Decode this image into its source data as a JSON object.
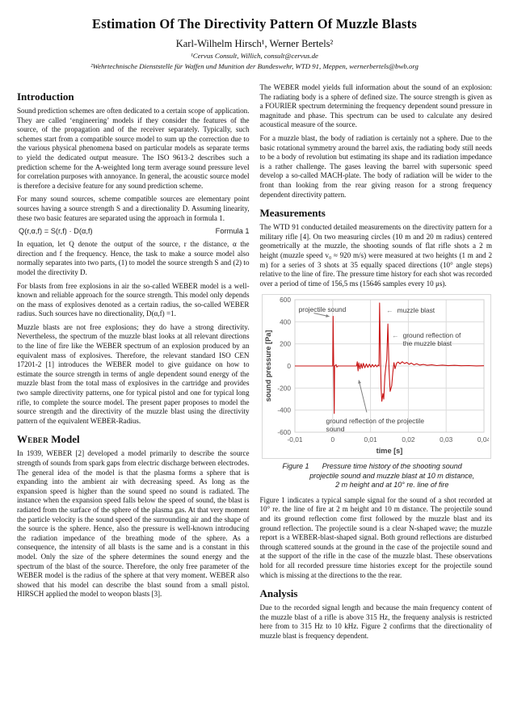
{
  "paper": {
    "title": "Estimation Of The Directivity Pattern Of Muzzle Blasts",
    "authors": "Karl-Wilhelm Hirsch¹, Werner Bertels²",
    "affiliation1": "¹Cervus Consult, Willich, consult@cervus.de",
    "affiliation2": "²Wehrtechnische Dienststelle für Waffen und Munition der Bundeswehr, WTD 91, Meppen, wernerbertels@bwb.org"
  },
  "left_column": {
    "h_intro": "Introduction",
    "p1": "Sound prediction schemes are often dedicated to a certain scope of application. They are called ‘engineering’ models if they consider the features of the source, of the propagation and of the receiver separately. Typically, such schemes start from a compatible source model to sum up the correction due to the various physical phenomena based on particular models as separate terms to yield the dedicated output measure. The ISO 9613-2 describes such a prediction scheme for the A-weighted long term average sound pressure level for correlation purposes with annoyance. In general, the acoustic source model is therefore a decisive feature for any sound prediction scheme.",
    "p2": "For many sound sources, scheme compatible sources are elementary point sources having a source strength S and a directionality D. Assuming linearity, these two basic features are separated using the approach in formula 1.",
    "formula_expr": "Q(r,α,f) = S(r,f) · D(α,f)",
    "formula_label": "Formula 1",
    "p3": "In equation, let Q denote the output of the source, r the distance, α the direction and f the frequency. Hence, the task to make a source model also normally separates into two parts, (1) to model the source strength S and (2) to model the directivity D.",
    "p4": "For blasts from free explosions in air the so-called WEBER model is a well-known and reliable approach for the source strength. This model only depends on the mass of explosives denoted as a certain radius, the so-called WEBER radius. Such sources have no directionality, D(α,f) =1.",
    "p5": "Muzzle blasts are not free explosions; they do have a strong directivity. Nevertheless, the spectrum of the muzzle blast looks at all relevant directions to the line of fire like the WEBER spectrum of an explosion produced by an equivalent mass of explosives. Therefore, the relevant standard ISO CEN 17201-2 [1] introduces the WEBER model to give guidance on how to estimate the source strength in terms of angle dependent sound energy of the muzzle blast from the total mass of explosives in the cartridge and provides two sample directivity patterns, one for typical pistol and one for typical long rifle, to complete the source model. The present paper proposes to model the source strength and the directivity of the muzzle blast using the directivity pattern of the equivalent WEBER-Radius.",
    "h_weber_sc": "Weber",
    "h_weber_rest": " Model",
    "p6": "In 1939, WEBER [2] developed a model primarily to describe the source strength of sounds from spark gaps from electric discharge between electrodes. The general idea of the model is that the plasma forms a sphere that is expanding into the ambient air with decreasing speed. As long as the expansion speed is higher than the sound speed no sound is radiated. The instance when the expansion speed falls below the speed of sound, the blast is radiated from the surface of the sphere of the plasma gas. At that very moment the particle velocity is the sound speed of the surrounding air and the shape of the source is the sphere. Hence, also the pressure is well-known introducing the radiation impedance of the breathing mode of the sphere. As a consequence, the intensity of all blasts is the same and is a constant in this model. Only the size of the sphere determines the sound energy and the spectrum of the blast of the source. Therefore, the only free parameter of the WEBER model is the radius of the sphere at that very moment. WEBER also showed that his model can describe the blast sound from a small pistol. HIRSCH applied the model to weopon blasts [3]."
  },
  "right_column": {
    "p1": "The WEBER model yields full information about the sound of an explosion: The radiating body is a sphere of defined size. The source strength is given as a FOURIER spectrum determining the frequency dependent sound pressure in magnitude and phase. This spectrum can be used to calculate any desired acoustical measure of the source.",
    "p2": "For a muzzle blast, the body of radiation is certainly not a sphere. Due to the basic rotational symmetry around the barrel axis, the radiating body still needs to be a body of revolution but estimating its shape and its radiation impedance is a rather challenge. The gases leaving the barrel with supersonic speed develop a so-called MACH-plate. The body of radiation will be wider to the front than looking from the rear giving reason for a strong frequency dependent directivity pattern.",
    "h_meas": "Measurements",
    "p3": "The WTD 91 conducted detailed measurements on the directivity pattern for a military rifle [4]. On two measuring circles (10 m and 20 m radius) centered geometrically at the muzzle, the shooting sounds of flat rifle shots a 2 m height (muzzle speed v₀ ≈ 920 m/s) were measured at two heights (1 m and 2 m) for a series of 3 shots at 35 equally spaced directions (10° angle steps) relative to the line of fire. The pressure time history for each shot was recorded over a period of time of 156,5 ms (15646 samples every 10 μs).",
    "figure_caption": {
      "label": "Figure 1",
      "line1": "Pressure time history of the shooting sound",
      "line2": "projectile sound and muzzle blast at 10 m distance,",
      "line3": "2 m height and at 10° re. line of fire"
    },
    "p4": "Figure 1 indicates a typical sample signal for the sound of a shot recorded at 10° re. the line of fire at 2 m height and 10 m distance. The projectile sound and its ground reflection come first followed by the muzzle blast and its ground reflection. The projectile sound is a clear N-shaped wave; the muzzle report is a WEBER-blast-shaped signal. Both ground reflections are disturbed through scattered sounds at the ground in the case of the projectile sound and at the support of the rifle in the case of the muzzle blast. These observations hold for all recorded pressure time histories except for the projectile sound which is missing at the directions to the the rear.",
    "h_analysis": "Analysis",
    "p5": "Due to the recorded signal length and because the main frequency content of the muzzle blast of a rifle is above 315 Hz, the frequeny analysis is restricted here from to 315 Hz to 10 kHz. Figure 2 confirms that the directionality of muzzle blast is frequency dependent."
  },
  "chart_data": {
    "type": "line",
    "xlabel": "time [s]",
    "ylabel": "sound pressure [Pa]",
    "xlim": [
      -0.01,
      0.04
    ],
    "ylim": [
      -600,
      600
    ],
    "x_ticks": [
      -0.01,
      0,
      0.01,
      0.02,
      0.03,
      0.04
    ],
    "x_tick_labels": [
      "-0,01",
      "0",
      "0,01",
      "0,02",
      "0,03",
      "0,04"
    ],
    "y_ticks": [
      600,
      400,
      200,
      0,
      -200,
      -400,
      -600
    ],
    "grid": true,
    "line_color": "#c81414",
    "grid_color": "#dcdcdc",
    "axis_text_color": "#595959",
    "annotation_color": "#3f3f3f",
    "arrow_color": "#7f7f7f",
    "series": [
      {
        "name": "sound pressure",
        "points": [
          [
            -0.01,
            0
          ],
          [
            -0.006,
            0
          ],
          [
            -0.002,
            0
          ],
          [
            -0.0005,
            0
          ],
          [
            0.0,
            0
          ],
          [
            0.0001,
            450
          ],
          [
            0.0004,
            -430
          ],
          [
            0.0005,
            0
          ],
          [
            0.0009,
            12
          ],
          [
            0.0011,
            -10
          ],
          [
            0.0014,
            0
          ],
          [
            0.003,
            0
          ],
          [
            0.005,
            0
          ],
          [
            0.0063,
            0
          ],
          [
            0.0065,
            38
          ],
          [
            0.0067,
            -45
          ],
          [
            0.0069,
            28
          ],
          [
            0.0072,
            -26
          ],
          [
            0.0075,
            22
          ],
          [
            0.0078,
            -20
          ],
          [
            0.0081,
            24
          ],
          [
            0.0085,
            -16
          ],
          [
            0.0089,
            18
          ],
          [
            0.0093,
            -13
          ],
          [
            0.0097,
            16
          ],
          [
            0.0101,
            -10
          ],
          [
            0.0105,
            13
          ],
          [
            0.0109,
            -8
          ],
          [
            0.0113,
            10
          ],
          [
            0.0117,
            -7
          ],
          [
            0.012,
            8
          ],
          [
            0.01225,
            0
          ],
          [
            0.0124,
            570
          ],
          [
            0.0126,
            120
          ],
          [
            0.0128,
            -200
          ],
          [
            0.013,
            -320
          ],
          [
            0.0133,
            -250
          ],
          [
            0.0135,
            -300
          ],
          [
            0.0138,
            -90
          ],
          [
            0.0141,
            10
          ],
          [
            0.0143,
            60
          ],
          [
            0.0146,
            380
          ],
          [
            0.0149,
            -30
          ],
          [
            0.0152,
            -230
          ],
          [
            0.0156,
            -180
          ],
          [
            0.0159,
            -60
          ],
          [
            0.0162,
            30
          ],
          [
            0.0165,
            -25
          ],
          [
            0.0169,
            25
          ],
          [
            0.0173,
            35
          ],
          [
            0.0178,
            20
          ],
          [
            0.0184,
            38
          ],
          [
            0.019,
            22
          ],
          [
            0.0196,
            32
          ],
          [
            0.0202,
            15
          ],
          [
            0.0208,
            26
          ],
          [
            0.0215,
            10
          ],
          [
            0.0222,
            20
          ],
          [
            0.023,
            8
          ],
          [
            0.024,
            14
          ],
          [
            0.025,
            6
          ],
          [
            0.0262,
            10
          ],
          [
            0.0275,
            4
          ],
          [
            0.029,
            8
          ],
          [
            0.0305,
            3
          ],
          [
            0.0322,
            6
          ],
          [
            0.034,
            2
          ],
          [
            0.036,
            4
          ],
          [
            0.038,
            1
          ],
          [
            0.04,
            2
          ]
        ]
      }
    ],
    "annotations": [
      {
        "id": "projectile-sound",
        "text": "projectile sound",
        "x": -0.0089,
        "y": 512,
        "align": "left",
        "line": [
          [
            -0.005,
            478
          ],
          [
            -0.0009,
            448
          ]
        ]
      },
      {
        "id": "muzzle-blast",
        "text": "muzzle blast",
        "arrow": "←",
        "x": 0.0143,
        "y": 506,
        "align": "left"
      },
      {
        "id": "ground-reflection-muzzle-blast",
        "text": "ground reflection of\nthe muzzle blast",
        "arrow": "←",
        "x": 0.0158,
        "y": 280,
        "align": "left"
      },
      {
        "id": "ground-reflection-projectile-sound",
        "text": "ground reflection of the projectile sound",
        "x": 0.0128,
        "y": -497,
        "align": "center",
        "line": [
          [
            0.009,
            -420
          ],
          [
            0.0069,
            -128
          ]
        ]
      }
    ]
  }
}
